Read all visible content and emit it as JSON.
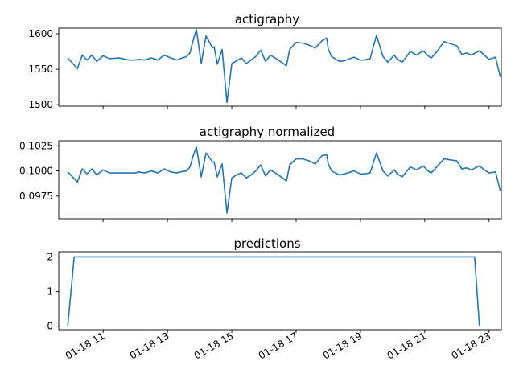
{
  "colors": {
    "series": "#1f77b4"
  },
  "chart_data": [
    {
      "type": "line",
      "title": "actigraphy",
      "xlabel": "",
      "ylabel": "",
      "x_unit": "hours",
      "xlim": [
        9.62,
        23.38
      ],
      "ylim": [
        1498,
        1608
      ],
      "yticks": [
        1500,
        1550,
        1600
      ],
      "ytick_labels": [
        "1500",
        "1550",
        "1600"
      ],
      "xtick_labels_visible": false,
      "x": [
        9.9,
        10.2,
        10.35,
        10.5,
        10.65,
        10.8,
        11.0,
        11.2,
        11.5,
        11.8,
        12.0,
        12.1,
        12.3,
        12.5,
        12.7,
        12.9,
        13.1,
        13.3,
        13.4,
        13.6,
        13.7,
        13.8,
        13.9,
        14.05,
        14.2,
        14.4,
        14.45,
        14.55,
        14.7,
        14.85,
        15.0,
        15.15,
        15.3,
        15.45,
        15.6,
        15.75,
        15.9,
        16.05,
        16.2,
        16.45,
        16.7,
        16.8,
        17.0,
        17.2,
        17.4,
        17.6,
        17.8,
        17.95,
        18.0,
        18.1,
        18.35,
        18.5,
        18.8,
        19.0,
        19.1,
        19.3,
        19.5,
        19.7,
        19.85,
        20.05,
        20.15,
        20.3,
        20.55,
        20.75,
        20.95,
        21.1,
        21.2,
        21.4,
        21.6,
        22.0,
        22.15,
        22.3,
        22.45,
        22.7,
        22.85,
        23.0,
        23.2,
        23.35
      ],
      "y": [
        1566,
        1551,
        1570,
        1563,
        1570,
        1561,
        1569,
        1565,
        1566,
        1563,
        1563,
        1564,
        1563,
        1566,
        1563,
        1570,
        1566,
        1563,
        1565,
        1568,
        1573,
        1591,
        1606,
        1558,
        1597,
        1580,
        1582,
        1557,
        1578,
        1503,
        1558,
        1562,
        1566,
        1558,
        1563,
        1568,
        1577,
        1561,
        1570,
        1563,
        1555,
        1578,
        1588,
        1587,
        1584,
        1580,
        1590,
        1594,
        1578,
        1568,
        1561,
        1562,
        1567,
        1563,
        1563,
        1565,
        1598,
        1568,
        1560,
        1570,
        1564,
        1560,
        1575,
        1570,
        1576,
        1569,
        1566,
        1576,
        1589,
        1583,
        1571,
        1573,
        1570,
        1576,
        1570,
        1564,
        1567,
        1539
      ],
      "series": [
        {
          "values_ref": "y"
        }
      ]
    },
    {
      "type": "line",
      "title": "actigraphy normalized",
      "xlabel": "",
      "ylabel": "",
      "x_unit": "hours",
      "xlim": [
        9.62,
        23.38
      ],
      "ylim": [
        0.09525,
        0.103
      ],
      "yticks": [
        0.0975,
        0.1,
        0.1025
      ],
      "ytick_labels": [
        "0.0975",
        "0.1000",
        "0.1025"
      ],
      "xtick_labels_visible": false,
      "x": [
        9.9,
        10.2,
        10.35,
        10.5,
        10.65,
        10.8,
        11.0,
        11.2,
        11.5,
        11.8,
        12.0,
        12.1,
        12.3,
        12.5,
        12.7,
        12.9,
        13.1,
        13.3,
        13.4,
        13.6,
        13.7,
        13.8,
        13.9,
        14.05,
        14.2,
        14.4,
        14.45,
        14.55,
        14.7,
        14.85,
        15.0,
        15.15,
        15.3,
        15.45,
        15.6,
        15.75,
        15.9,
        16.05,
        16.2,
        16.45,
        16.7,
        16.8,
        17.0,
        17.2,
        17.4,
        17.6,
        17.8,
        17.95,
        18.0,
        18.1,
        18.35,
        18.5,
        18.8,
        19.0,
        19.1,
        19.3,
        19.5,
        19.7,
        19.85,
        20.05,
        20.15,
        20.3,
        20.55,
        20.75,
        20.95,
        21.1,
        21.2,
        21.4,
        21.6,
        22.0,
        22.15,
        22.3,
        22.45,
        22.7,
        22.85,
        23.0,
        23.2,
        23.35
      ],
      "y": [
        0.0999,
        0.0989,
        0.1002,
        0.0997,
        0.1002,
        0.0996,
        0.1001,
        0.0998,
        0.0998,
        0.0998,
        0.0998,
        0.0999,
        0.0998,
        0.1,
        0.0998,
        0.1002,
        0.0999,
        0.0998,
        0.0999,
        0.1,
        0.1004,
        0.1015,
        0.1024,
        0.0994,
        0.1018,
        0.1009,
        0.1009,
        0.0994,
        0.1007,
        0.0958,
        0.0993,
        0.0996,
        0.0998,
        0.0993,
        0.0996,
        0.1,
        0.1006,
        0.0995,
        0.1001,
        0.0996,
        0.099,
        0.1006,
        0.1012,
        0.1012,
        0.101,
        0.1007,
        0.1015,
        0.1016,
        0.1007,
        0.1,
        0.0996,
        0.0997,
        0.1,
        0.0997,
        0.0997,
        0.0998,
        0.1018,
        0.1,
        0.0995,
        0.1001,
        0.0997,
        0.0994,
        0.1004,
        0.1001,
        0.1005,
        0.1,
        0.0998,
        0.1005,
        0.1012,
        0.101,
        0.1002,
        0.1003,
        0.1001,
        0.1005,
        0.1001,
        0.0998,
        0.0999,
        0.098
      ],
      "series": [
        {
          "values_ref": "y"
        }
      ]
    },
    {
      "type": "line",
      "title": "predictions",
      "xlabel": "",
      "ylabel": "",
      "x_unit": "hours",
      "xlim": [
        9.62,
        23.38
      ],
      "ylim": [
        -0.1,
        2.15
      ],
      "yticks": [
        0,
        1,
        2
      ],
      "ytick_labels": [
        "0",
        "1",
        "2"
      ],
      "xticks": [
        11,
        13,
        15,
        17,
        19,
        21,
        23
      ],
      "xtick_labels": [
        "01-18 11",
        "01-18 13",
        "01-18 15",
        "01-18 17",
        "01-18 19",
        "01-18 21",
        "01-18 23"
      ],
      "xtick_labels_visible": true,
      "x": [
        9.9,
        10.1,
        22.55,
        22.7
      ],
      "y": [
        0,
        2,
        2,
        0
      ],
      "series": [
        {
          "values_ref": "y"
        }
      ]
    }
  ]
}
